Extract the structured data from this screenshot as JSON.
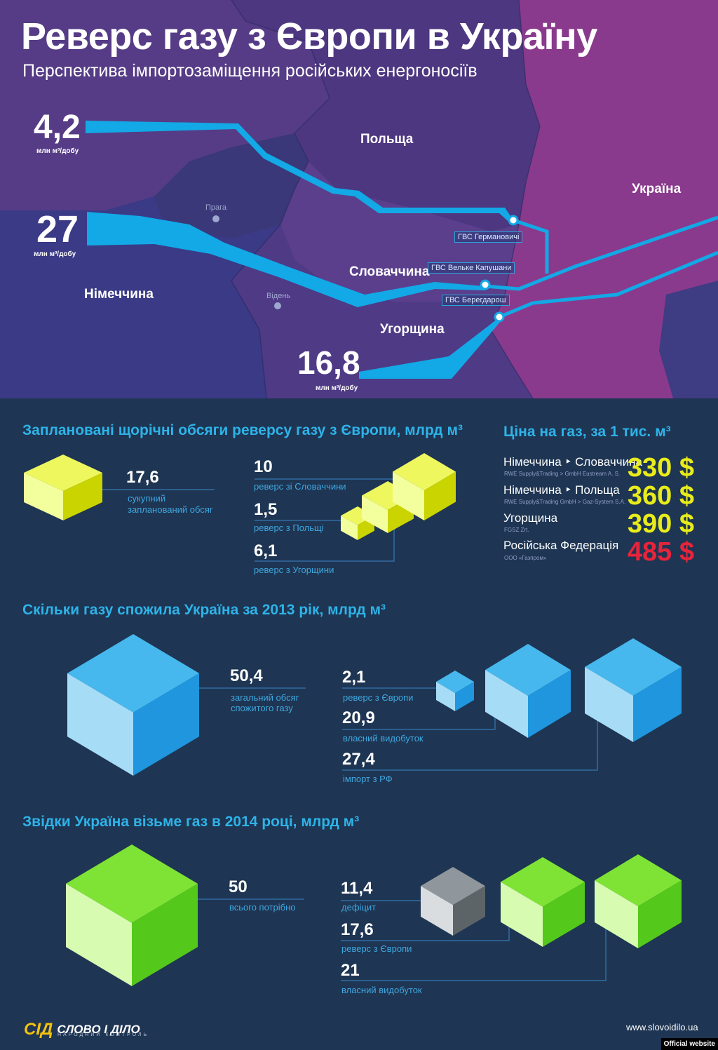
{
  "header": {
    "title": "Реверс газу з Європи в Україну",
    "subtitle": "Перспектива імпортозаміщення російських енергоносіїв"
  },
  "map": {
    "countries": {
      "poland": "Польща",
      "ukraine": "Україна",
      "slovakia": "Словаччина",
      "germany": "Німеччина",
      "hungary": "Угорщина"
    },
    "cities": {
      "prague": "Прага",
      "vienna": "Відень"
    },
    "hubs": {
      "hermanowice": "ГВС Германовичі",
      "velke_kapusany": "ГВС Вельке Капушани",
      "beregdaroc": "ГВС Берегдарош"
    },
    "flows": [
      {
        "value": "4,2",
        "unit": "млн м³/добу"
      },
      {
        "value": "27",
        "unit": "млн м³/добу"
      },
      {
        "value": "16,8",
        "unit": "млн м³/добу"
      }
    ]
  },
  "planned": {
    "title": "Заплановані щорічні обсяги реверсу газу з Європи, млрд м³",
    "total_value": "17,6",
    "total_caption_1": "сукупний",
    "total_caption_2": "запланований обсяг",
    "items": [
      {
        "value": "10",
        "caption": "реверс зі Словаччини"
      },
      {
        "value": "1,5",
        "caption": "реверс з Польщі"
      },
      {
        "value": "6,1",
        "caption": "реверс з Угорщини"
      }
    ]
  },
  "price": {
    "title": "Ціна на газ, за 1 тис. м³",
    "rows": [
      {
        "name": "Німеччина ‣ Словаччина",
        "sub": "RWE Supply&Trading > GmbH Eustream A. S.",
        "value": "330 $"
      },
      {
        "name": "Німеччина ‣ Польща",
        "sub": "RWE Supply&Trading GmbH > Gaz-System S.A.",
        "value": "360 $"
      },
      {
        "name": "Угорщина",
        "sub": "FGSZ Zrt.",
        "value": "390 $"
      },
      {
        "name": "Російська Федерація",
        "sub": "ООО «Газпром»",
        "value": "485 $"
      }
    ],
    "colors": {
      "normal": "#e8ec1a",
      "russia": "#e8243a"
    }
  },
  "consumed": {
    "title": "Скільки газу спожила Україна за 2013 рік, млрд м³",
    "total_value": "50,4",
    "total_caption_1": "загальний обсяг",
    "total_caption_2": "спожитого газу",
    "items": [
      {
        "value": "2,1",
        "caption": "реверс з Європи"
      },
      {
        "value": "20,9",
        "caption": "власний видобуток"
      },
      {
        "value": "27,4",
        "caption": "імпорт з РФ"
      }
    ]
  },
  "sources2014": {
    "title": "Звідки Україна візьме газ в 2014 році, млрд м³",
    "total_value": "50",
    "total_caption": "всього потрібно",
    "items": [
      {
        "value": "11,4",
        "caption": "дефіцит"
      },
      {
        "value": "17,6",
        "caption": "реверс з Європи"
      },
      {
        "value": "21",
        "caption": "власний видобуток"
      }
    ]
  },
  "chart_data": [
    {
      "type": "bar",
      "title": "Заплановані щорічні обсяги реверсу газу з Європи, млрд м³",
      "categories": [
        "сукупний запланований обсяг",
        "реверс зі Словаччини",
        "реверс з Польщі",
        "реверс з Угорщини"
      ],
      "values": [
        17.6,
        10,
        1.5,
        6.1
      ]
    },
    {
      "type": "bar",
      "title": "Ціна на газ, за 1 тис. м³",
      "categories": [
        "Німеччина ‣ Словаччина",
        "Німеччина ‣ Польща",
        "Угорщина",
        "Російська Федерація"
      ],
      "values": [
        330,
        360,
        390,
        485
      ]
    },
    {
      "type": "bar",
      "title": "Скільки газу спожила Україна за 2013 рік, млрд м³",
      "categories": [
        "загальний обсяг спожитого газу",
        "реверс з Європи",
        "власний видобуток",
        "імпорт з РФ"
      ],
      "values": [
        50.4,
        2.1,
        20.9,
        27.4
      ]
    },
    {
      "type": "bar",
      "title": "Звідки Україна візьме газ в 2014 році, млрд м³",
      "categories": [
        "всього потрібно",
        "дефіцит",
        "реверс з Європи",
        "власний видобуток"
      ],
      "values": [
        50,
        11.4,
        17.6,
        21
      ]
    },
    {
      "type": "bar",
      "title": "",
      "categories": [
        "Польща",
        "Словаччина",
        "Угорщина"
      ],
      "values": [
        4.2,
        27,
        16.8
      ]
    }
  ],
  "footer": {
    "logo_mark": "СІД",
    "logo_text": "СЛОВО І ДІЛО",
    "logo_tagline": "НАРОДНИЙ КОНТРОЛЬ",
    "site": "www.slovoidilo.ua",
    "official": "Official website"
  }
}
